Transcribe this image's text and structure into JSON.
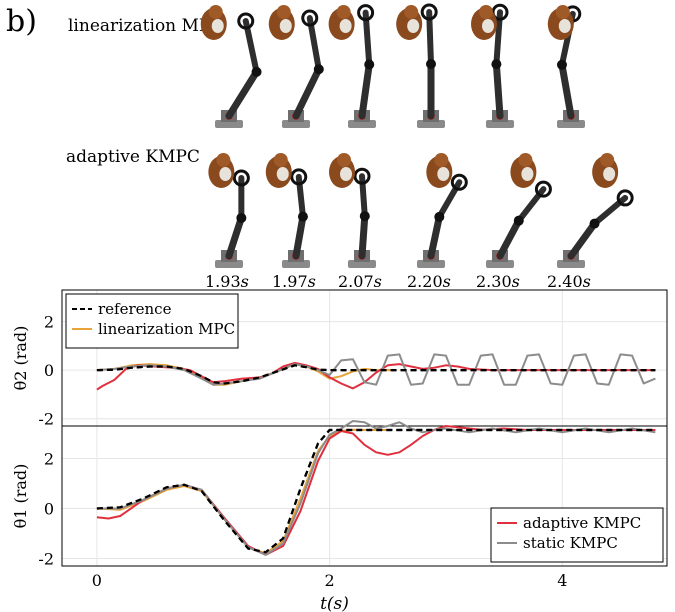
{
  "figure": {
    "panel_label": "b)",
    "row1_label": "linearization MPC",
    "row2_label": "adaptive KMPC",
    "snapshots": [
      {
        "time": "1.93",
        "unit": "s"
      },
      {
        "time": "1.97",
        "unit": "s"
      },
      {
        "time": "2.07",
        "unit": "s"
      },
      {
        "time": "2.20",
        "unit": "s"
      },
      {
        "time": "2.30",
        "unit": "s"
      },
      {
        "time": "2.40",
        "unit": "s"
      }
    ]
  },
  "colors": {
    "reference": "#000000",
    "linearization": "#e8a33a",
    "adaptive": "#e0303e",
    "static": "#8c8c8c",
    "grid": "#e6e6e6",
    "robot": "#2e2e2e",
    "base": "#8a8a8a",
    "toy": "#8a4a1e"
  },
  "chart_data": [
    {
      "type": "line",
      "ylabel": "θ2 (rad)",
      "xlim": [
        -0.3,
        4.9
      ],
      "ylim": [
        -2.3,
        3.3
      ],
      "yticks": [
        -2,
        0,
        2
      ],
      "legend": {
        "placement": "top-left",
        "entries": [
          "reference",
          "linearization MPC"
        ]
      },
      "grid": true,
      "series": [
        {
          "name": "reference",
          "style": "dashed",
          "colorKey": "reference",
          "x": [
            0,
            0.15,
            0.3,
            0.45,
            0.6,
            0.75,
            0.9,
            1.0,
            1.1,
            1.25,
            1.4,
            1.55,
            1.7,
            1.8,
            1.9,
            2.0,
            4.8
          ],
          "y": [
            0,
            0.02,
            0.1,
            0.15,
            0.15,
            0.05,
            -0.25,
            -0.5,
            -0.55,
            -0.45,
            -0.3,
            -0.05,
            0.2,
            0.12,
            0.02,
            0,
            0
          ]
        },
        {
          "name": "linearization MPC",
          "colorKey": "linearization",
          "x": [
            0,
            0.15,
            0.3,
            0.45,
            0.6,
            0.75,
            0.9,
            1.0,
            1.1,
            1.25,
            1.4,
            1.55,
            1.7,
            1.8,
            1.9,
            2.0,
            2.1,
            2.2,
            2.3,
            2.4,
            2.55
          ],
          "y": [
            0,
            0.05,
            0.2,
            0.25,
            0.2,
            0.05,
            -0.3,
            -0.6,
            -0.6,
            -0.45,
            -0.3,
            -0.05,
            0.25,
            0.15,
            -0.05,
            -0.35,
            -0.25,
            -0.05,
            0.05,
            0,
            0
          ]
        },
        {
          "name": "adaptive KMPC",
          "colorKey": "adaptive",
          "x": [
            0,
            0.05,
            0.15,
            0.25,
            0.35,
            0.5,
            0.65,
            0.8,
            0.9,
            1.0,
            1.1,
            1.25,
            1.4,
            1.5,
            1.6,
            1.7,
            1.8,
            1.9,
            2.0,
            2.1,
            2.2,
            2.3,
            2.4,
            2.5,
            2.6,
            2.7,
            2.8,
            2.9,
            3.0,
            3.1,
            3.2,
            3.4,
            3.6,
            3.8,
            4.0,
            4.8
          ],
          "y": [
            -0.8,
            -0.65,
            -0.4,
            0.05,
            0.2,
            0.15,
            0.1,
            0.0,
            -0.25,
            -0.5,
            -0.45,
            -0.35,
            -0.3,
            -0.15,
            0.15,
            0.3,
            0.2,
            0.05,
            -0.3,
            -0.55,
            -0.75,
            -0.5,
            -0.1,
            0.2,
            0.25,
            0.15,
            0.05,
            0.1,
            0.2,
            0.15,
            0.05,
            0,
            0,
            0,
            0,
            0
          ]
        },
        {
          "name": "static KMPC",
          "colorKey": "static",
          "x": [
            0,
            0.15,
            0.3,
            0.45,
            0.6,
            0.75,
            0.9,
            1.0,
            1.1,
            1.25,
            1.4,
            1.55,
            1.7,
            1.8,
            1.9,
            2.0,
            2.1,
            2.2,
            2.3,
            2.4,
            2.5,
            2.6,
            2.7,
            2.8,
            2.9,
            3.0,
            3.1,
            3.2,
            3.3,
            3.4,
            3.5,
            3.6,
            3.7,
            3.8,
            3.9,
            4.0,
            4.1,
            4.2,
            4.3,
            4.4,
            4.5,
            4.6,
            4.7,
            4.8
          ],
          "y": [
            0,
            0.05,
            0.15,
            0.2,
            0.15,
            0.0,
            -0.35,
            -0.6,
            -0.55,
            -0.45,
            -0.35,
            -0.05,
            0.25,
            0.15,
            0.0,
            -0.2,
            0.4,
            0.45,
            -0.5,
            -0.6,
            0.6,
            0.65,
            -0.6,
            -0.55,
            0.65,
            0.6,
            -0.6,
            -0.6,
            0.6,
            0.65,
            -0.6,
            -0.6,
            0.6,
            0.65,
            -0.55,
            -0.6,
            0.6,
            0.65,
            -0.55,
            -0.6,
            0.65,
            0.6,
            -0.55,
            -0.35
          ]
        }
      ]
    },
    {
      "type": "line",
      "ylabel": "θ1 (rad)",
      "xlabel": "t(s)",
      "xlim": [
        -0.3,
        4.9
      ],
      "ylim": [
        -2.3,
        3.3
      ],
      "xticks": [
        0,
        2,
        4
      ],
      "yticks": [
        -2,
        0,
        2
      ],
      "legend": {
        "placement": "bottom-right",
        "entries": [
          "adaptive KMPC",
          "static KMPC"
        ]
      },
      "grid": true,
      "series": [
        {
          "name": "reference",
          "style": "dashed",
          "colorKey": "reference",
          "x": [
            0,
            0.2,
            0.4,
            0.6,
            0.75,
            0.9,
            1.1,
            1.3,
            1.45,
            1.6,
            1.75,
            1.9,
            2.0,
            4.8
          ],
          "y": [
            0,
            0.05,
            0.4,
            0.85,
            0.95,
            0.7,
            -0.5,
            -1.6,
            -1.75,
            -1.2,
            0.8,
            2.6,
            3.14,
            3.14
          ]
        },
        {
          "name": "linearization MPC",
          "colorKey": "linearization",
          "x": [
            0,
            0.2,
            0.4,
            0.6,
            0.75,
            0.9,
            1.1,
            1.3,
            1.45,
            1.6,
            1.75,
            1.9,
            2.0,
            2.1,
            2.2,
            2.3,
            2.5
          ],
          "y": [
            0,
            -0.05,
            0.3,
            0.75,
            0.9,
            0.7,
            -0.45,
            -1.55,
            -1.8,
            -1.3,
            0.4,
            2.3,
            2.9,
            3.1,
            3.15,
            3.14,
            3.14
          ]
        },
        {
          "name": "adaptive KMPC",
          "colorKey": "adaptive",
          "x": [
            0,
            0.1,
            0.2,
            0.4,
            0.6,
            0.75,
            0.9,
            1.1,
            1.3,
            1.45,
            1.6,
            1.75,
            1.9,
            2.0,
            2.1,
            2.2,
            2.3,
            2.4,
            2.5,
            2.6,
            2.7,
            2.8,
            2.9,
            3.0,
            3.1,
            3.3,
            3.5,
            3.7,
            4.0,
            4.8
          ],
          "y": [
            -0.35,
            -0.4,
            -0.3,
            0.35,
            0.8,
            0.95,
            0.75,
            -0.4,
            -1.5,
            -1.85,
            -1.5,
            -0.1,
            1.9,
            2.8,
            3.1,
            3.0,
            2.55,
            2.25,
            2.15,
            2.25,
            2.55,
            2.9,
            3.15,
            3.3,
            3.25,
            3.15,
            3.2,
            3.14,
            3.14,
            3.14
          ]
        },
        {
          "name": "static KMPC",
          "colorKey": "static",
          "x": [
            0,
            0.2,
            0.4,
            0.6,
            0.75,
            0.9,
            1.1,
            1.3,
            1.45,
            1.6,
            1.75,
            1.9,
            2.0,
            2.1,
            2.2,
            2.3,
            2.4,
            2.5,
            2.6,
            2.7,
            2.8,
            2.9,
            3.0,
            3.2,
            3.4,
            3.6,
            3.8,
            4.0,
            4.2,
            4.4,
            4.6,
            4.8
          ],
          "y": [
            0,
            0.0,
            0.35,
            0.8,
            0.95,
            0.75,
            -0.45,
            -1.55,
            -1.85,
            -1.4,
            0.2,
            2.2,
            2.95,
            3.2,
            3.5,
            3.45,
            3.2,
            3.3,
            3.45,
            3.2,
            3.05,
            3.15,
            3.2,
            3.05,
            3.2,
            3.05,
            3.2,
            3.05,
            3.2,
            3.05,
            3.2,
            3.05
          ]
        }
      ]
    }
  ]
}
